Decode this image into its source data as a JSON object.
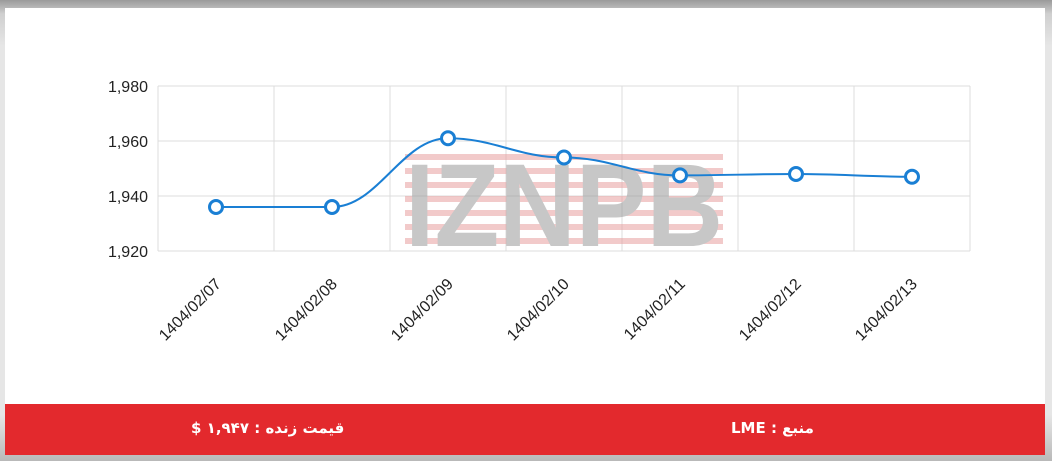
{
  "chart_data": {
    "type": "line",
    "categories": [
      "1404/02/07",
      "1404/02/08",
      "1404/02/09",
      "1404/02/10",
      "1404/02/11",
      "1404/02/12",
      "1404/02/13"
    ],
    "series": [
      {
        "values": [
          1936,
          1936,
          1961,
          1954,
          1947.5,
          1948,
          1947
        ]
      }
    ],
    "y_ticks": [
      "1,920",
      "1,940",
      "1,960",
      "1,980"
    ],
    "ylim": [
      1920,
      1980
    ],
    "grid": true,
    "curve": "smooth",
    "line_color": "#1a7fd4",
    "watermark": "IZNPB"
  },
  "footer": {
    "source_text": "منبع : LME",
    "price_text": "قیمت زنده : ۱,۹۴۷ $",
    "background_color": "#e3292d"
  }
}
